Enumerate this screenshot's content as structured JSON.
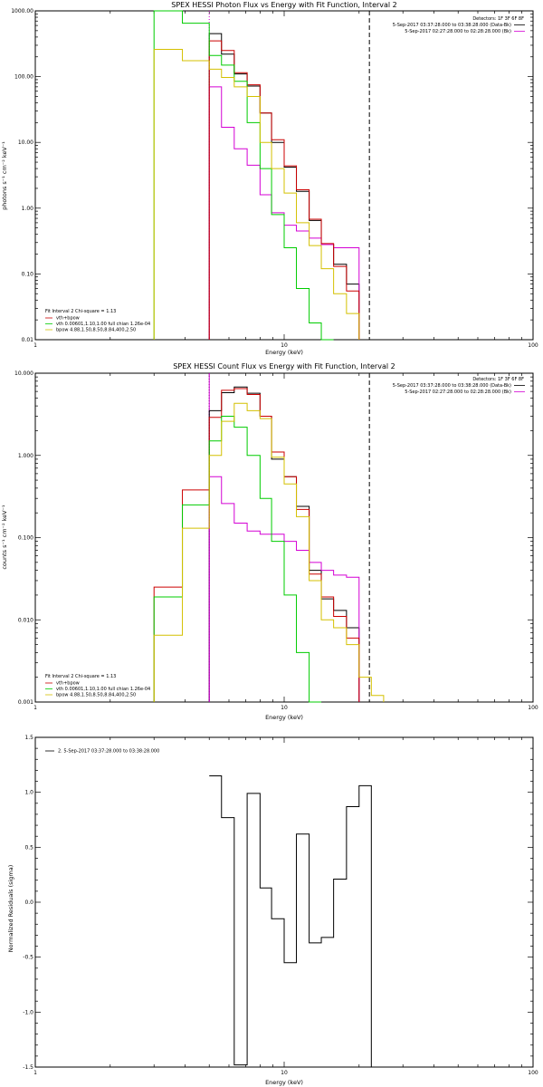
{
  "colors": {
    "data": "#000000",
    "background": "#d400d4",
    "total": "#cc0000",
    "vth": "#00cc00",
    "bpow": "#d4c000"
  },
  "chart_data": [
    {
      "type": "line",
      "title": "SPEX HESSI Photon Flux vs Energy with Fit Function, Interval 2",
      "xlabel": "Energy (keV)",
      "ylabel": "photons s⁻¹ cm⁻² keV⁻¹",
      "xscale": "log",
      "yscale": "log",
      "xlim": [
        1,
        100
      ],
      "ylim": [
        0.01,
        1000
      ],
      "xticks": [
        {
          "v": 1,
          "label": "1"
        },
        {
          "v": 10,
          "label": "10"
        },
        {
          "v": 100,
          "label": "100"
        }
      ],
      "yticks": [
        {
          "v": 0.01,
          "label": "0.01"
        },
        {
          "v": 0.1,
          "label": "0.10"
        },
        {
          "v": 1,
          "label": "1.00"
        },
        {
          "v": 10,
          "label": "10.00"
        },
        {
          "v": 100,
          "label": "100.00"
        },
        {
          "v": 1000,
          "label": "1000.00"
        }
      ],
      "vlines": [
        {
          "x": 5.0,
          "style": "dotted",
          "color": "#d400d4"
        },
        {
          "x": 22.0,
          "style": "dashed",
          "color": "#000000"
        }
      ],
      "info": [
        "Detectors: 1F 3F 6F 8F",
        "5-Sep-2017 03:37:28.000 to 03:38:28.000 (Data-Bk)",
        "5-Sep-2017 02:27:28.000 to 02:28:28.000 (Bk)"
      ],
      "info_colors": [
        "#000000",
        "#000000",
        "#d400d4"
      ],
      "fit_lines": [
        "Fit Interval 2   Chi-square = 1.13",
        "vth+bpow",
        "vth 0.00601,1.10,1.00  full chian 1.26e-04",
        "bpow 4.88,1.50,8.50,8.84,400,2.50"
      ],
      "fit_colors": [
        "#000000",
        "#cc0000",
        "#00cc00",
        "#d4c000"
      ],
      "bin_edges": [
        3.0,
        3.9,
        5.0,
        5.6,
        6.3,
        7.1,
        8.0,
        8.9,
        10.0,
        11.2,
        12.6,
        14.1,
        15.8,
        17.8,
        20.0,
        22.4,
        25.1
      ],
      "series": [
        {
          "name": "Data-Bk",
          "color": "#000000",
          "start": 2,
          "values": [
            450,
            220,
            110,
            72,
            28,
            10,
            4.2,
            1.8,
            0.65,
            0.28,
            0.14,
            0.07
          ]
        },
        {
          "name": "Bk",
          "color": "#d400d4",
          "start": 2,
          "values": [
            70,
            17,
            8,
            4.5,
            1.6,
            0.85,
            0.55,
            0.45,
            0.35,
            0.28,
            0.25,
            0.25
          ]
        },
        {
          "name": "vth+bpow",
          "color": "#cc0000",
          "start": 2,
          "values": [
            350,
            250,
            115,
            75,
            28,
            11,
            4.4,
            1.9,
            0.68,
            0.29,
            0.13,
            0.055
          ]
        },
        {
          "name": "vth",
          "color": "#00cc00",
          "start": 0,
          "values": [
            1000,
            650,
            210,
            150,
            85,
            20,
            4.0,
            0.8,
            0.25,
            0.06,
            0.018,
            0.0
          ]
        },
        {
          "name": "bpow",
          "color": "#d4c000",
          "start": 0,
          "values": [
            260,
            175,
            130,
            97,
            70,
            50,
            10,
            4.0,
            1.7,
            0.6,
            0.27,
            0.12,
            0.05,
            0.025
          ]
        }
      ]
    },
    {
      "type": "line",
      "title": "SPEX HESSI Count Flux vs Energy with Fit Function, Interval 2",
      "xlabel": "Energy (keV)",
      "ylabel": "counts s⁻¹ cm⁻² keV⁻¹",
      "xscale": "log",
      "yscale": "log",
      "xlim": [
        1,
        100
      ],
      "ylim": [
        0.001,
        10
      ],
      "xticks": [
        {
          "v": 1,
          "label": "1"
        },
        {
          "v": 10,
          "label": "10"
        },
        {
          "v": 100,
          "label": "100"
        }
      ],
      "yticks": [
        {
          "v": 0.001,
          "label": "0.001"
        },
        {
          "v": 0.01,
          "label": "0.010"
        },
        {
          "v": 0.1,
          "label": "0.100"
        },
        {
          "v": 1,
          "label": "1.000"
        },
        {
          "v": 10,
          "label": "10.000"
        }
      ],
      "vlines": [
        {
          "x": 5.0,
          "style": "dotted",
          "color": "#000000"
        },
        {
          "x": 5.0,
          "style": "solid",
          "color": "#d400d4"
        },
        {
          "x": 22.0,
          "style": "dashed",
          "color": "#000000"
        }
      ],
      "info": [
        "Detectors: 1F 3F 6F 8F",
        "5-Sep-2017 03:37:28.000 to 03:38:28.000 (Data-Bk)",
        "5-Sep-2017 02:27:28.000 to 02:28:28.000 (Bk)"
      ],
      "info_colors": [
        "#000000",
        "#000000",
        "#d400d4"
      ],
      "fit_lines": [
        "Fit Interval 2   Chi-square = 1.13",
        "vth+bpow",
        "vth 0.00601,1.10,1.00  full chian 1.26e-04",
        "bpow 4.88,1.50,8.50,8.84,400,2.50"
      ],
      "fit_colors": [
        "#000000",
        "#cc0000",
        "#00cc00",
        "#d4c000"
      ],
      "bin_edges": [
        3.0,
        3.9,
        5.0,
        5.6,
        6.3,
        7.1,
        8.0,
        8.9,
        10.0,
        11.2,
        12.6,
        14.1,
        15.8,
        17.8,
        20.0,
        22.4,
        25.1
      ],
      "series": [
        {
          "name": "Data-Bk",
          "color": "#000000",
          "start": 2,
          "values": [
            3.5,
            5.8,
            6.8,
            5.7,
            3.0,
            0.9,
            0.55,
            0.24,
            0.04,
            0.018,
            0.013,
            0.008
          ]
        },
        {
          "name": "Bk",
          "color": "#d400d4",
          "start": 2,
          "values": [
            0.55,
            0.26,
            0.15,
            0.12,
            0.11,
            0.11,
            0.09,
            0.07,
            0.05,
            0.04,
            0.035,
            0.033
          ]
        },
        {
          "name": "vth+bpow",
          "color": "#cc0000",
          "start": 0,
          "values": [
            0.025,
            0.38,
            2.9,
            6.2,
            6.5,
            5.5,
            3.0,
            1.1,
            0.55,
            0.22,
            0.036,
            0.019,
            0.011,
            0.006
          ]
        },
        {
          "name": "vth",
          "color": "#00cc00",
          "start": 0,
          "values": [
            0.019,
            0.25,
            1.5,
            3.0,
            2.2,
            1.0,
            0.3,
            0.09,
            0.02,
            0.004,
            0.001
          ]
        },
        {
          "name": "bpow",
          "color": "#d4c000",
          "start": 0,
          "values": [
            0.0065,
            0.13,
            1.0,
            2.6,
            4.3,
            3.5,
            2.8,
            0.95,
            0.45,
            0.18,
            0.03,
            0.01,
            0.008,
            0.005,
            0.002,
            0.0012
          ]
        }
      ]
    },
    {
      "type": "line",
      "title": "",
      "xlabel": "Energy (keV)",
      "ylabel": "Normalized Residuals (sigma)",
      "xscale": "log",
      "yscale": "linear",
      "xlim": [
        1,
        100
      ],
      "ylim": [
        -1.5,
        1.5
      ],
      "xticks": [
        {
          "v": 1,
          "label": "1"
        },
        {
          "v": 10,
          "label": "10"
        },
        {
          "v": 100,
          "label": "100"
        }
      ],
      "yticks": [
        {
          "v": -1.5,
          "label": "-1.5"
        },
        {
          "v": -1.0,
          "label": "-1.0"
        },
        {
          "v": -0.5,
          "label": "-0.5"
        },
        {
          "v": 0,
          "label": "0.0"
        },
        {
          "v": 0.5,
          "label": "0.5"
        },
        {
          "v": 1.0,
          "label": "1.0"
        },
        {
          "v": 1.5,
          "label": "1.5"
        }
      ],
      "legend": "2.  5-Sep-2017 03:37:28.000 to 03:38:28.000",
      "bin_edges": [
        5.0,
        5.6,
        6.3,
        7.1,
        8.0,
        8.9,
        10.0,
        11.2,
        12.6,
        14.1,
        15.8,
        17.8,
        20.0,
        22.4
      ],
      "series": [
        {
          "name": "2.  5-Sep-2017 03:37:28.000 to 03:38:28.000",
          "color": "#000000",
          "start": 0,
          "values": [
            1.15,
            0.77,
            -1.48,
            0.99,
            0.13,
            -0.15,
            -0.55,
            0.62,
            -0.37,
            -0.32,
            0.21,
            0.87,
            1.06
          ]
        }
      ]
    }
  ]
}
